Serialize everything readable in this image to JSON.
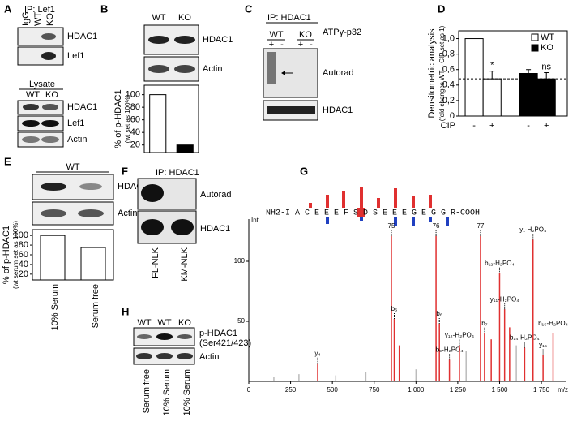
{
  "panels": {
    "A": {
      "label": "A",
      "ip": "IP: Lef1",
      "lanes": [
        "IgG",
        "WT",
        "KO"
      ],
      "blots": [
        "HDAC1",
        "Lef1"
      ],
      "lysate": "Lysate",
      "lysate_lanes": [
        "WT",
        "KO"
      ],
      "lysate_blots": [
        "HDAC1",
        "Lef1",
        "Actin"
      ]
    },
    "B": {
      "label": "B",
      "lanes": [
        "WT",
        "KO"
      ],
      "blots": [
        "HDAC1",
        "Actin"
      ]
    },
    "C": {
      "label": "C",
      "ip": "IP: HDAC1",
      "groups": [
        "WT",
        "KO"
      ],
      "treatment": [
        "+",
        "-",
        "+",
        "-"
      ],
      "reagent": "ATPγ-p32",
      "blots": [
        "Autorad",
        "HDAC1"
      ]
    },
    "D": {
      "label": "D"
    },
    "E": {
      "label": "E",
      "group": "WT",
      "blots": [
        "HDAC1",
        "Actin"
      ]
    },
    "F": {
      "label": "F",
      "ip": "IP: HDAC1",
      "blots": [
        "Autorad",
        "HDAC1"
      ],
      "lanes": [
        "FL-NLK",
        "KM-NLK"
      ]
    },
    "G": {
      "label": "G",
      "sequence": "NH2-I A C E E E F S D S E E E G E G G R-COOH"
    },
    "H": {
      "label": "H",
      "lanes": [
        "WT",
        "WT",
        "KO"
      ],
      "blots": [
        "p-HDAC1",
        "(Ser421/423)",
        "Actin"
      ],
      "conditions": [
        "Serum free",
        "10% Serum",
        "10% Serum"
      ]
    }
  },
  "chart_data": [
    {
      "type": "bar",
      "y_label": [
        "% of p-HDAC1",
        "(wt set as 100%)"
      ],
      "values": [
        100,
        20
      ],
      "colors": [
        "#ffffff",
        "#000000"
      ],
      "ylim": [
        8,
        115
      ],
      "yticks": [
        20,
        40,
        60,
        80,
        100
      ]
    },
    {
      "type": "grouped_bar",
      "y_label": [
        "Densitometric analysis",
        "(fold changes WT – CIP set as 1)"
      ],
      "x_label": "CIP",
      "categories": [
        "-",
        "+"
      ],
      "series": [
        {
          "name": "WT",
          "color": "#ffffff",
          "values": [
            1.0,
            0.48
          ],
          "errors": [
            null,
            0.1
          ],
          "annotations": [
            null,
            "*"
          ]
        },
        {
          "name": "KO",
          "color": "#000000",
          "values": [
            0.55,
            0.48
          ],
          "errors": [
            0.05,
            0.08
          ],
          "annotations": [
            null,
            "ns"
          ]
        }
      ],
      "hline": 0.48,
      "legend": "top-right",
      "ylim": [
        0,
        1.1
      ],
      "yticks": [
        0,
        {
          "value": 0.2,
          "label": "0,2"
        },
        {
          "value": 0.4,
          "label": "0,4"
        },
        {
          "value": 0.6,
          "label": "0,6"
        },
        {
          "value": 0.8,
          "label": "0,8"
        },
        {
          "value": 1.0,
          "label": "1,0"
        }
      ]
    },
    {
      "type": "bar",
      "y_label": [
        "% of p-HDAC1",
        "(wt serum set as 100%)"
      ],
      "categories": [
        "10% Serum",
        "Serum free"
      ],
      "values": [
        100,
        75
      ],
      "colors": [
        "#ffffff",
        "#ffffff"
      ],
      "ylim": [
        8,
        112
      ],
      "yticks": [
        20,
        40,
        60,
        80,
        100
      ]
    },
    {
      "type": "spectrum",
      "y_label": "Int",
      "x_label": "m/z",
      "xlim": [
        0,
        1900
      ],
      "xticks": [
        0,
        250,
        500,
        750,
        {
          "value": 1000,
          "label": "1 000"
        },
        {
          "value": 1250,
          "label": "1 250"
        },
        {
          "value": 1500,
          "label": "1 500"
        },
        {
          "value": 1750,
          "label": "1 750"
        }
      ],
      "ylim": [
        0,
        125
      ],
      "yticks": [
        50,
        100
      ],
      "x": [
        150,
        300,
        412,
        520,
        700,
        853,
        870,
        900,
        1000,
        1120,
        1140,
        1200,
        1260,
        1300,
        1386,
        1410,
        1450,
        1500,
        1530,
        1560,
        1600,
        1650,
        1700,
        1760,
        1820
      ],
      "values": [
        4,
        6,
        15,
        5,
        8,
        121,
        52,
        30,
        10,
        121,
        48,
        18,
        30,
        25,
        121,
        40,
        35,
        90,
        60,
        45,
        30,
        28,
        118,
        22,
        40
      ],
      "colors": [
        "#bbbbbb",
        "#bbbbbb",
        "#e03030",
        "#bbbbbb",
        "#bbbbbb",
        "#e03030",
        "#e03030",
        "#e03030",
        "#bbbbbb",
        "#e03030",
        "#e03030",
        "#e03030",
        "#e03030",
        "#bbbbbb",
        "#e03030",
        "#e03030",
        "#e03030",
        "#e03030",
        "#e03030",
        "#e03030",
        "#bbbbbb",
        "#e03030",
        "#e03030",
        "#e03030",
        "#e03030"
      ],
      "peak_labels": [
        null,
        null,
        "y₄",
        null,
        null,
        "75",
        "b₅",
        null,
        null,
        "76",
        "b₆",
        "b₉-H₂PO₄",
        "y₁₂-H₂PO₄",
        null,
        "77",
        "b₇",
        null,
        "b₁₂-H₂PO₄",
        "y₁₁-H₂PO₄",
        null,
        null,
        "b₁₄-H₂PO₄",
        "y₁-H₂PO₄",
        "y₁₅",
        "b₁₅-H₂PO₄"
      ]
    }
  ]
}
